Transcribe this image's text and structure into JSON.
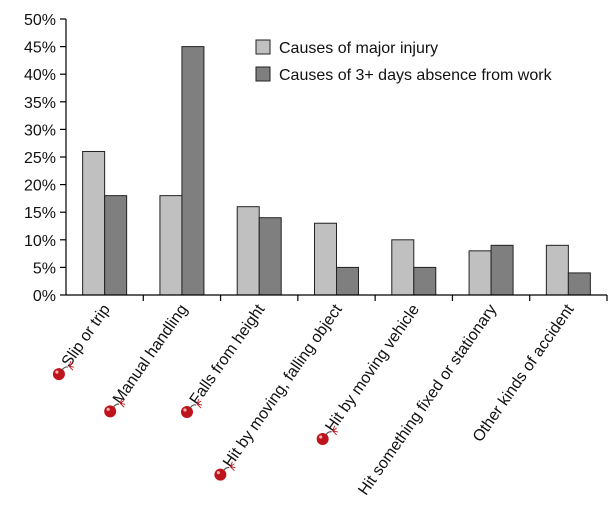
{
  "chart_data": {
    "type": "bar",
    "title": "",
    "xlabel": "",
    "ylabel": "",
    "ylim": [
      0,
      50
    ],
    "yticks": [
      0,
      5,
      10,
      15,
      20,
      25,
      30,
      35,
      40,
      45,
      50
    ],
    "ytick_labels": [
      "0%",
      "5%",
      "10%",
      "15%",
      "20%",
      "25%",
      "30%",
      "35%",
      "40%",
      "45%",
      "50%"
    ],
    "grid": false,
    "legend_position": "top-right",
    "categories": [
      "Slip or trip",
      "Manual handling",
      "Falls from height",
      "Hit by moving, falling object",
      "Hit by moving vehicle",
      "Hit something fixed or stationary",
      "Other kinds of accident"
    ],
    "category_icons": [
      "bomb-icon",
      "bomb-icon",
      "bomb-icon",
      "bomb-icon",
      "bomb-icon",
      "",
      ""
    ],
    "series": [
      {
        "name": "Causes of major injury",
        "values": [
          26,
          18,
          16,
          13,
          10,
          8,
          9
        ],
        "color": "#c0c0c0"
      },
      {
        "name": "Causes of 3+ days absence from work",
        "values": [
          18,
          45,
          14,
          5,
          5,
          9,
          4
        ],
        "color": "#7f7f7f"
      }
    ],
    "icon_color": "#c0141c"
  }
}
